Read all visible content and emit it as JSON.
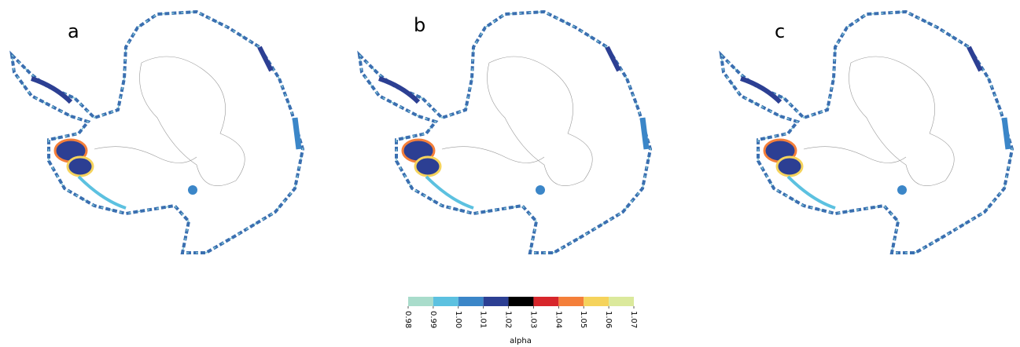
{
  "panels": [
    "a",
    "b",
    "c"
  ],
  "colorbar": {
    "label": "alpha",
    "ticks": [
      0.98,
      0.99,
      {
        "value": 1,
        "label": "1.00"
      },
      1.01,
      1.02,
      1.03,
      1.04,
      1.05,
      1.06,
      1.07
    ],
    "colors": [
      "#a9dccb",
      "#5cc1e0",
      "#3b86c8",
      "#2c3f93",
      "#000000",
      "#d7262b",
      "#f47f3a",
      "#f5d35c",
      "#dbe99c"
    ]
  }
}
